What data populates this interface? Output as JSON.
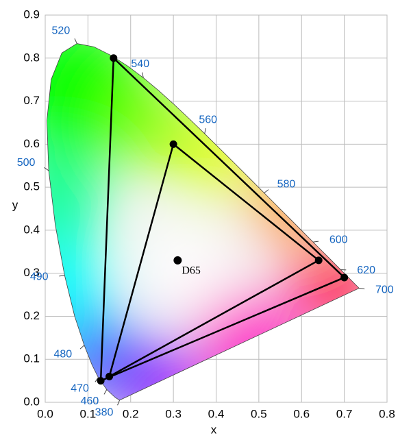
{
  "chart_data": {
    "type": "chromaticity",
    "x_label": "x",
    "y_label": "y",
    "xlim": [
      0,
      0.8
    ],
    "ylim": [
      0,
      0.9
    ],
    "xticks": [
      {
        "value": 0,
        "label": "0.0"
      },
      0.1,
      0.2,
      0.3,
      0.4,
      0.5,
      0.6,
      0.7,
      0.8
    ],
    "yticks": [
      {
        "value": 0,
        "label": "0.0"
      },
      0.1,
      0.2,
      0.3,
      0.4,
      0.5,
      0.6,
      0.7,
      0.8,
      0.9
    ],
    "grid": true,
    "locus": {
      "x": [
        0.1741,
        0.1644,
        0.1566,
        0.144,
        0.1241,
        0.1096,
        0.0913,
        0.0687,
        0.0454,
        0.0235,
        0.0082,
        0.0039,
        0.0139,
        0.0389,
        0.0743,
        0.1142,
        0.1547,
        0.1929,
        0.2296,
        0.2658,
        0.3016,
        0.3373,
        0.3731,
        0.4087,
        0.4441,
        0.4788,
        0.5125,
        0.5448,
        0.5752,
        0.6029,
        0.627,
        0.6482,
        0.6658,
        0.6801,
        0.6915,
        0.7006,
        0.7079,
        0.714,
        0.7347
      ],
      "y": [
        0.005,
        0.0109,
        0.0177,
        0.0297,
        0.0578,
        0.0868,
        0.1327,
        0.2007,
        0.295,
        0.4127,
        0.5384,
        0.6548,
        0.7502,
        0.812,
        0.8338,
        0.8262,
        0.8059,
        0.7816,
        0.7543,
        0.7243,
        0.6923,
        0.6589,
        0.6245,
        0.5896,
        0.5547,
        0.5202,
        0.4866,
        0.4544,
        0.4242,
        0.3965,
        0.3725,
        0.3514,
        0.334,
        0.3197,
        0.3083,
        0.2993,
        0.292,
        0.2859,
        0.2653
      ],
      "labels": [
        "380",
        null,
        null,
        "460",
        "470",
        null,
        "480",
        null,
        "490",
        null,
        "500",
        null,
        null,
        null,
        "520",
        null,
        null,
        null,
        "540",
        null,
        null,
        null,
        "560",
        null,
        null,
        null,
        "580",
        null,
        null,
        null,
        "600",
        null,
        null,
        null,
        "620",
        null,
        null,
        null,
        "700"
      ]
    },
    "gamuts": [
      {
        "x": [
          0.7,
          0.16,
          0.13
        ],
        "y": [
          0.29,
          0.8,
          0.05
        ],
        "color": "#000000"
      },
      {
        "x": [
          0.64,
          0.3,
          0.15
        ],
        "y": [
          0.33,
          0.6,
          0.06
        ],
        "color": "#000000"
      }
    ],
    "white_point": {
      "label": "D65",
      "x": 0.31,
      "y": 0.33
    }
  }
}
